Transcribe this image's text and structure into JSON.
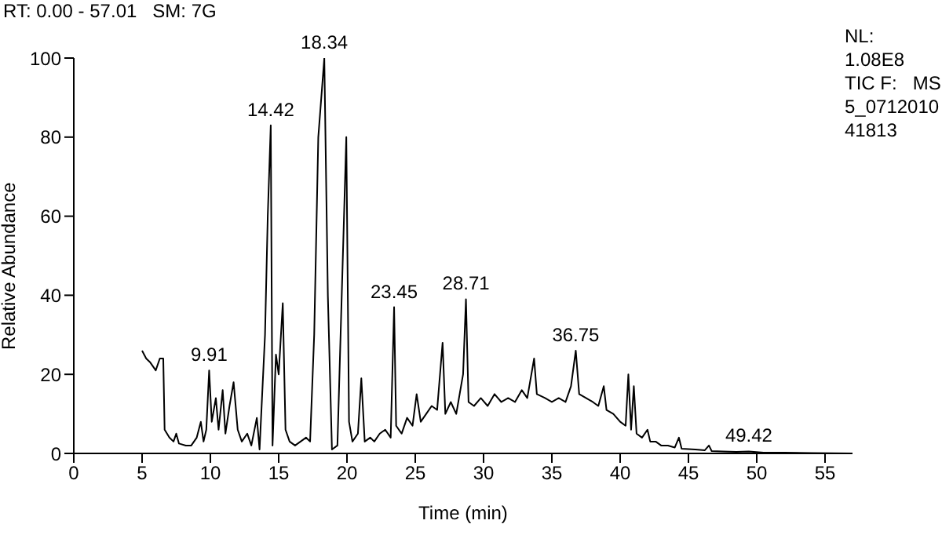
{
  "chart_data": {
    "type": "line",
    "xlabel": "Time (min)",
    "ylabel": "Relative Abundance",
    "x": [
      5.0,
      5.3,
      5.6,
      6.0,
      6.3,
      6.55,
      6.65,
      7.0,
      7.3,
      7.5,
      7.7,
      8.2,
      8.6,
      9.0,
      9.3,
      9.5,
      9.7,
      9.91,
      10.1,
      10.4,
      10.6,
      10.9,
      11.1,
      11.4,
      11.7,
      12.0,
      12.3,
      12.7,
      13.0,
      13.4,
      13.6,
      14.0,
      14.2,
      14.42,
      14.55,
      14.8,
      15.0,
      15.3,
      15.5,
      15.8,
      16.2,
      16.6,
      17.0,
      17.3,
      17.6,
      17.9,
      18.34,
      18.6,
      18.9,
      19.3,
      19.95,
      20.15,
      20.4,
      20.8,
      21.05,
      21.3,
      21.7,
      22.0,
      22.4,
      22.8,
      23.2,
      23.45,
      23.6,
      24.0,
      24.4,
      24.8,
      25.1,
      25.4,
      25.8,
      26.2,
      26.6,
      27.0,
      27.2,
      27.6,
      28.0,
      28.5,
      28.71,
      28.9,
      29.3,
      29.8,
      30.3,
      30.8,
      31.3,
      31.8,
      32.3,
      32.8,
      33.2,
      33.7,
      33.9,
      34.5,
      35.0,
      35.5,
      36.0,
      36.4,
      36.75,
      37.0,
      37.5,
      38.0,
      38.4,
      38.8,
      39.0,
      39.5,
      40.0,
      40.4,
      40.6,
      40.8,
      41.0,
      41.2,
      41.6,
      42.0,
      42.2,
      42.6,
      43.0,
      43.5,
      44.0,
      44.3,
      44.5,
      45.5,
      46.2,
      46.5,
      46.7,
      47.5,
      48.5,
      49.42,
      50.5,
      52.0,
      54.0,
      57.0
    ],
    "series": [
      {
        "color": "#000000",
        "values": [
          26,
          24,
          23,
          21,
          24,
          24,
          6,
          4,
          3,
          5,
          2.5,
          2,
          2,
          4,
          8,
          3,
          6,
          21,
          8,
          14,
          6,
          16,
          5,
          12,
          18,
          6,
          3,
          5,
          2,
          9,
          1,
          30,
          60,
          83,
          2,
          25,
          20,
          38,
          6,
          3,
          2,
          3,
          4,
          3,
          30,
          80,
          100,
          40,
          1,
          2,
          80,
          8,
          3,
          5,
          19,
          3,
          4,
          3,
          5,
          6,
          4,
          37,
          7,
          5,
          9,
          7,
          15,
          8,
          10,
          12,
          11,
          28,
          10,
          13,
          10,
          20,
          39,
          13,
          12,
          14,
          12,
          15,
          13,
          14,
          13,
          16,
          14,
          24,
          15,
          14,
          13,
          14,
          13,
          17,
          26,
          15,
          14,
          13,
          12,
          17,
          11,
          10,
          8,
          7,
          20,
          6,
          17,
          5,
          4,
          6,
          3,
          3,
          2,
          2,
          1.5,
          4,
          1.2,
          1,
          0.8,
          2,
          0.6,
          0.5,
          0.4,
          0.5,
          0.2,
          0.2,
          0.1,
          0
        ]
      }
    ],
    "xlim": [
      0,
      57.01
    ],
    "xticks": [
      0,
      5,
      10,
      15,
      20,
      25,
      30,
      35,
      40,
      45,
      50,
      55
    ],
    "ylim": [
      0,
      100
    ],
    "yticks": [
      0,
      20,
      40,
      60,
      80,
      100
    ],
    "grid": false,
    "legend": false,
    "marker": "none",
    "line_style": "solid",
    "annotations": [
      "RT: 0.00 - 57.01   SM: 7G",
      "NL:",
      "1.08E8",
      "TIC F:   MS",
      "5_0712010",
      "41813",
      {
        "text": "9.91",
        "x": 9.91,
        "y": 21
      },
      {
        "text": "14.42",
        "x": 14.42,
        "y": 83
      },
      {
        "text": "18.34",
        "x": 18.34,
        "y": 100
      },
      {
        "text": "23.45",
        "x": 23.45,
        "y": 37
      },
      {
        "text": "28.71",
        "x": 28.71,
        "y": 39
      },
      {
        "text": "36.75",
        "x": 36.75,
        "y": 26
      },
      {
        "text": "49.42",
        "x": 49.42,
        "y": 0.5
      }
    ]
  }
}
